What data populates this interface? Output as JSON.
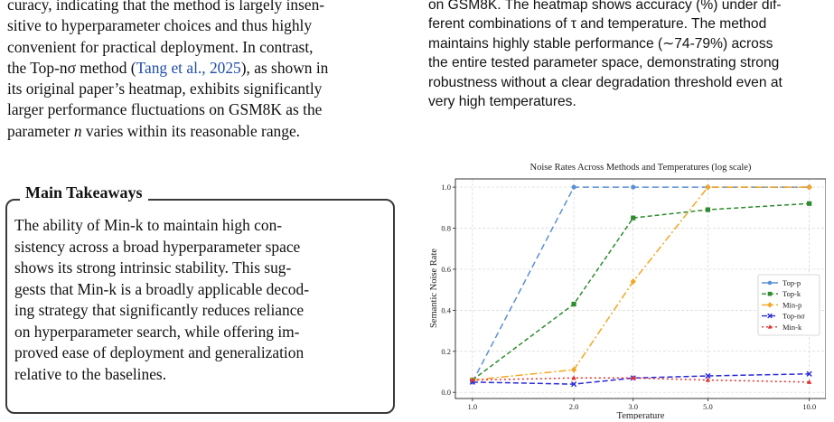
{
  "left": {
    "para_line1": "curacy, indicating that the method is largely insen-",
    "para_line2": "sitive to hyperparameter choices and thus highly",
    "para_line3": "convenient for practical deployment. In contrast,",
    "para_line4_a": "the Top-nσ method (",
    "para_line4_cite": "Tang et al., 2025",
    "para_line4_b": "), as shown in",
    "para_line5": "its original paper’s heatmap, exhibits significantly",
    "para_line6": "larger performance fluctuations on GSM8K as the",
    "para_line7_a": "parameter ",
    "para_line7_var": "n",
    "para_line7_b": " varies within its reasonable range.",
    "cite_color": "#1f4ea8"
  },
  "takeaway": {
    "title": "Main Takeaways",
    "line1": "The ability of Min-k to maintain high con-",
    "line2": "sistency across a broad hyperparameter space",
    "line3": "shows its strong intrinsic stability. This sug-",
    "line4": "gests that Min-k is a broadly applicable decod-",
    "line5": "ing strategy that significantly reduces reliance",
    "line6": "on hyperparameter search, while offering im-",
    "line7": "proved ease of deployment and generalization",
    "line8": "relative to the baselines."
  },
  "right": {
    "line1": "on GSM8K. The heatmap shows accuracy (%) under dif-",
    "line2": "ferent combinations of τ and temperature. The method",
    "line3": "maintains highly stable performance (∼74-79%) across",
    "line4": "the entire tested parameter space, demonstrating strong",
    "line5": "robustness without a clear degradation threshold even at",
    "line6": "very high temperatures."
  },
  "chart_data": {
    "type": "line",
    "title": "Noise Rates Across Methods and Temperatures (log scale)",
    "xlabel": "Temperature",
    "ylabel": "Semantic Noise Rate",
    "x_scale": "log",
    "x": [
      1.0,
      2.0,
      3.0,
      5.0,
      10.0
    ],
    "x_tick_labels": [
      "1.0",
      "2.0",
      "3.0",
      "5.0",
      "10.0"
    ],
    "ylim": [
      -0.03,
      1.04
    ],
    "y_ticks": [
      0.0,
      0.2,
      0.4,
      0.6,
      0.8,
      1.0
    ],
    "y_tick_labels": [
      "0.0",
      "0.2",
      "0.4",
      "0.6",
      "0.8",
      "1.0"
    ],
    "grid": true,
    "legend_position": "center-right",
    "series": [
      {
        "name": "Top-p",
        "color": "#5b8fd6",
        "dash": "7,4",
        "marker": "circle",
        "values": [
          0.05,
          1.0,
          1.0,
          1.0,
          1.0
        ]
      },
      {
        "name": "Top-k",
        "color": "#2e8b2e",
        "dash": "5,3",
        "marker": "square",
        "values": [
          0.06,
          0.43,
          0.85,
          0.89,
          0.92
        ]
      },
      {
        "name": "Min-p",
        "color": "#f5a623",
        "dash": "8,3,2,3",
        "marker": "diamond",
        "values": [
          0.06,
          0.11,
          0.54,
          1.0,
          1.0
        ]
      },
      {
        "name": "Top-nσ",
        "color": "#2a2ad8",
        "dash": "6,3",
        "marker": "x",
        "values": [
          0.05,
          0.04,
          0.07,
          0.08,
          0.09
        ]
      },
      {
        "name": "Min-k",
        "color": "#e03030",
        "dash": "2,3",
        "marker": "triangle",
        "values": [
          0.06,
          0.07,
          0.07,
          0.06,
          0.05
        ]
      }
    ]
  }
}
